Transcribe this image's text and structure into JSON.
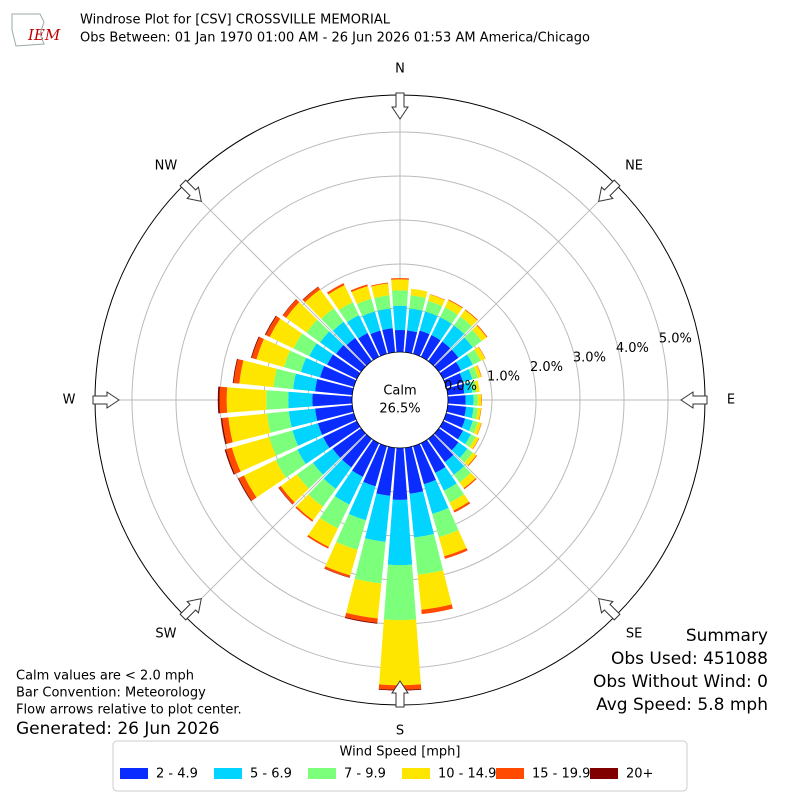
{
  "chart_data": {
    "type": "windrose",
    "logo_text": "IEM",
    "title": "Windrose Plot for [CSV] CROSSVILLE MEMORIAL",
    "subtitle": "Obs Between: 01 Jan 1970 01:00 AM - 26 Jun 2026 01:53 AM America/Chicago",
    "compass": [
      "N",
      "NE",
      "E",
      "SE",
      "S",
      "SW",
      "W",
      "NW"
    ],
    "calm": {
      "label": "Calm",
      "values": [
        26.5
      ],
      "value_labels": [
        "26.5%"
      ]
    },
    "x": [
      0,
      10,
      20,
      30,
      40,
      50,
      60,
      70,
      80,
      90,
      100,
      110,
      120,
      130,
      140,
      150,
      160,
      170,
      180,
      190,
      200,
      210,
      220,
      230,
      240,
      250,
      260,
      270,
      280,
      290,
      300,
      310,
      320,
      330,
      340,
      350
    ],
    "ylim": [
      0,
      5.84
    ],
    "yticks": [
      {
        "value": 0,
        "label": "0.0%"
      },
      {
        "value": 1,
        "label": "1.0%"
      },
      {
        "value": 2,
        "label": "2.0%"
      },
      {
        "value": 3,
        "label": "3.0%"
      },
      {
        "value": 4,
        "label": "4.0%"
      },
      {
        "value": 5,
        "label": "5.0%"
      }
    ],
    "grid": true,
    "legend_title": "Wind Speed [mph]",
    "series": [
      {
        "name": "2 - 4.9",
        "color": "#0a2cff",
        "values": [
          0.5,
          0.5,
          0.55,
          0.55,
          0.55,
          0.55,
          0.45,
          0.4,
          0.38,
          0.4,
          0.42,
          0.45,
          0.5,
          0.55,
          0.65,
          0.75,
          0.9,
          1.05,
          1.18,
          1.1,
          0.95,
          0.85,
          0.8,
          0.8,
          0.85,
          0.85,
          0.85,
          0.9,
          0.85,
          0.8,
          0.75,
          0.7,
          0.65,
          0.6,
          0.55,
          0.55
        ]
      },
      {
        "name": "5 - 6.9",
        "color": "#00d4ff",
        "values": [
          0.55,
          0.5,
          0.45,
          0.45,
          0.45,
          0.4,
          0.3,
          0.22,
          0.18,
          0.18,
          0.17,
          0.18,
          0.2,
          0.25,
          0.35,
          0.45,
          0.7,
          1.0,
          1.48,
          1.05,
          0.8,
          0.7,
          0.6,
          0.55,
          0.65,
          0.6,
          0.6,
          0.55,
          0.5,
          0.45,
          0.45,
          0.45,
          0.45,
          0.45,
          0.45,
          0.45
        ]
      },
      {
        "name": "7 - 9.9",
        "color": "#7cff7a",
        "values": [
          0.35,
          0.3,
          0.25,
          0.25,
          0.25,
          0.25,
          0.2,
          0.13,
          0.1,
          0.1,
          0.1,
          0.12,
          0.12,
          0.15,
          0.22,
          0.3,
          0.55,
          0.85,
          1.25,
          0.95,
          0.7,
          0.6,
          0.5,
          0.45,
          0.55,
          0.55,
          0.5,
          0.5,
          0.45,
          0.4,
          0.4,
          0.38,
          0.38,
          0.33,
          0.3,
          0.3
        ]
      },
      {
        "name": "10 - 14.9",
        "color": "#ffe600",
        "values": [
          0.25,
          0.15,
          0.15,
          0.18,
          0.18,
          0.14,
          0.11,
          0.08,
          0.07,
          0.08,
          0.07,
          0.08,
          0.08,
          0.1,
          0.16,
          0.2,
          0.45,
          0.8,
          1.48,
          0.8,
          0.6,
          0.47,
          0.38,
          0.45,
          0.8,
          0.88,
          0.88,
          0.9,
          0.78,
          0.65,
          0.6,
          0.57,
          0.53,
          0.43,
          0.3,
          0.27
        ]
      },
      {
        "name": "15 - 19.9",
        "color": "#ff4a00",
        "values": [
          0.03,
          0,
          0.01,
          0.02,
          0.02,
          0.02,
          0.01,
          0.01,
          0,
          0.01,
          0.01,
          0.01,
          0.01,
          0.02,
          0.03,
          0.05,
          0.06,
          0.1,
          0.1,
          0.1,
          0.05,
          0.04,
          0.04,
          0.06,
          0.13,
          0.14,
          0.14,
          0.16,
          0.13,
          0.11,
          0.1,
          0.09,
          0.07,
          0.05,
          0.04,
          0.02
        ]
      },
      {
        "name": "20+",
        "color": "#800000",
        "values": [
          0,
          0,
          0,
          0,
          0,
          0,
          0,
          0,
          0,
          0,
          0,
          0,
          0,
          0,
          0,
          0,
          0,
          0,
          0.02,
          0.02,
          0.01,
          0,
          0,
          0.01,
          0.02,
          0.03,
          0.03,
          0.04,
          0.02,
          0.02,
          0.02,
          0.01,
          0.01,
          0,
          0,
          0
        ]
      }
    ],
    "summary": {
      "title": "Summary",
      "lines": [
        "Obs Used: 451088",
        "Obs Without Wind: 0",
        "Avg Speed: 5.8 mph"
      ]
    },
    "notes": [
      "Calm values are < 2.0 mph",
      "Bar Convention: Meteorology",
      "Flow arrows relative to plot center."
    ],
    "generated": "Generated: 26 Jun 2026"
  }
}
